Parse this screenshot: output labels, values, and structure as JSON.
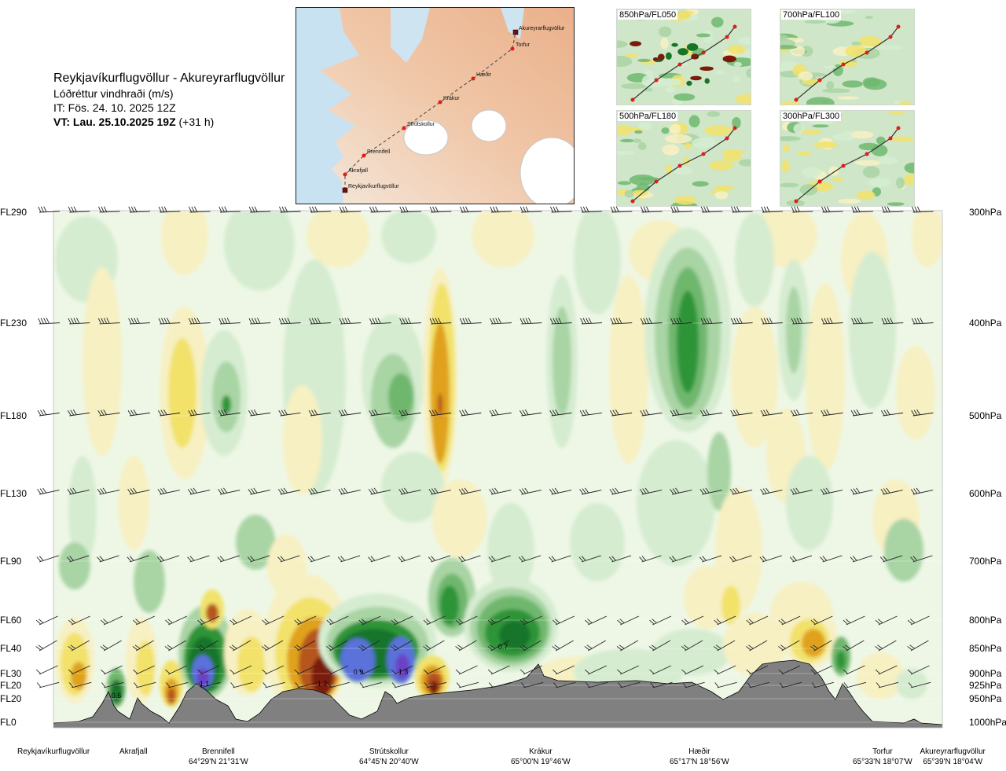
{
  "header": {
    "route": "Reykjavíkurflugvöllur - Akureyrarflugvöllur",
    "quantity": "Lóðréttur vindhraði (m/s)",
    "init_time": "IT: Fös. 24. 10. 2025 12Z",
    "valid_label": "VT: Lau. 25.10.2025 19Z",
    "valid_offset": "(+31 h)"
  },
  "route_map": {
    "points": [
      {
        "name": "Akureyrarflugvöllur",
        "kind": "airport"
      },
      {
        "name": "Torfur",
        "kind": "waypoint"
      },
      {
        "name": "Hæðir",
        "kind": "waypoint"
      },
      {
        "name": "Krákur",
        "kind": "waypoint"
      },
      {
        "name": "Strútskollur",
        "kind": "waypoint"
      },
      {
        "name": "Brennifell",
        "kind": "waypoint"
      },
      {
        "name": "Akrafjall",
        "kind": "waypoint"
      },
      {
        "name": "Reykjavíkurflugvöllur",
        "kind": "airport"
      }
    ]
  },
  "level_maps": [
    {
      "label": "850hPa/FL050"
    },
    {
      "label": "700hPa/FL100"
    },
    {
      "label": "500hPa/FL180"
    },
    {
      "label": "300hPa/FL300"
    }
  ],
  "chart_data": {
    "type": "heatmap",
    "title": "Reykjavíkurflugvöllur - Akureyrarflugvöllur",
    "subtitle": "Lóðréttur vindhraði (m/s)",
    "y_levels": [
      {
        "fl": "FL290",
        "hpa": "300hPa"
      },
      {
        "fl": "FL230",
        "hpa": "400hPa"
      },
      {
        "fl": "FL180",
        "hpa": "500hPa"
      },
      {
        "fl": "FL130",
        "hpa": "600hPa"
      },
      {
        "fl": "FL90",
        "hpa": "700hPa"
      },
      {
        "fl": "FL60",
        "hpa": "800hPa"
      },
      {
        "fl": "FL40",
        "hpa": "850hPa"
      },
      {
        "fl": "FL30",
        "hpa": "900hPa"
      },
      {
        "fl": "FL20",
        "hpa": "925hPa"
      },
      {
        "fl": "FL20",
        "hpa": "950hPa"
      },
      {
        "fl": "FL0",
        "hpa": "1000hPa"
      }
    ],
    "x_waypoints": [
      {
        "name": "Reykjavíkurflugvöllur",
        "coord": ""
      },
      {
        "name": "Akrafjall",
        "coord": ""
      },
      {
        "name": "Brennifell",
        "coord": "64°29'N 21°31'W"
      },
      {
        "name": "Strútskollur",
        "coord": "64°45'N 20°40'W"
      },
      {
        "name": "Krákur",
        "coord": "65°00'N 19°46'W"
      },
      {
        "name": "Hæðir",
        "coord": "65°17'N 18°56'W"
      },
      {
        "name": "Torfur",
        "coord": "65°33'N 18°07'W"
      },
      {
        "name": "Akureyrarflugvöllur",
        "coord": "65°39'N 18°04'W"
      }
    ],
    "annotations": [
      "0.6",
      "1.1",
      "1.2",
      "0.9",
      "1.3",
      "0.7"
    ],
    "colors": {
      "strong_down": "#7a1a08",
      "down_3": "#b5561a",
      "down_2": "#e0a21c",
      "down_1": "#f2e26a",
      "down_0": "#f7f0c2",
      "neutral": "#eef7e6",
      "up_0": "#d5ecd0",
      "up_1": "#a9d4a4",
      "up_2": "#6fb76e",
      "up_3": "#2f9438",
      "up_4": "#17752a",
      "up_strong": "#5a72d9",
      "up_max": "#6a42c8",
      "terrain": "#808080"
    }
  }
}
